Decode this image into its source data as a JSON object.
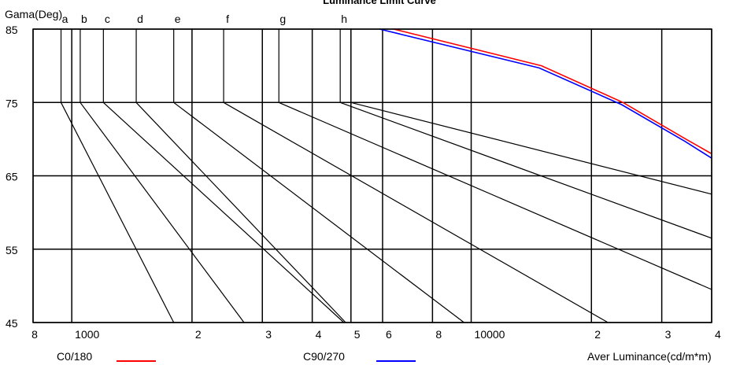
{
  "chart_data": {
    "type": "line",
    "title": "Luminance Limit Curve",
    "ylabel": "Gama(Deg)",
    "xlabel": "Aver Luminance(cd/m*m)",
    "x_scale": "log",
    "xlim": [
      800,
      40000
    ],
    "ylim": [
      45,
      85
    ],
    "y_ticks": [
      85,
      75,
      65,
      55,
      45
    ],
    "x_ticks": [
      {
        "value": 800,
        "label": "8"
      },
      {
        "value": 1000,
        "label": "1000"
      },
      {
        "value": 2000,
        "label": "2"
      },
      {
        "value": 3000,
        "label": "3"
      },
      {
        "value": 4000,
        "label": "4"
      },
      {
        "value": 5000,
        "label": "5"
      },
      {
        "value": 6000,
        "label": "6"
      },
      {
        "value": 8000,
        "label": "8"
      },
      {
        "value": 10000,
        "label": "10000"
      },
      {
        "value": 20000,
        "label": "2"
      },
      {
        "value": 30000,
        "label": "3"
      },
      {
        "value": 40000,
        "label": "4"
      }
    ],
    "grid": true,
    "limit_curves": [
      {
        "label": "a",
        "x_vertical": 940,
        "points": [
          [
            940,
            75
          ],
          [
            1800,
            45
          ]
        ]
      },
      {
        "label": "b",
        "x_vertical": 1050,
        "points": [
          [
            1050,
            75
          ],
          [
            2700,
            45
          ]
        ]
      },
      {
        "label": "c",
        "x_vertical": 1200,
        "points": [
          [
            1200,
            75
          ],
          [
            4800,
            45
          ]
        ]
      },
      {
        "label": "d",
        "x_vertical": 1450,
        "points": [
          [
            1450,
            75
          ],
          [
            4850,
            45
          ]
        ]
      },
      {
        "label": "e",
        "x_vertical": 1800,
        "points": [
          [
            1800,
            75
          ],
          [
            9600,
            45
          ]
        ]
      },
      {
        "label": "f",
        "x_vertical": 2400,
        "points": [
          [
            2400,
            75
          ],
          [
            22000,
            45
          ]
        ]
      },
      {
        "label": "g",
        "x_vertical": 3300,
        "points": [
          [
            3300,
            75
          ],
          [
            40000,
            49.5
          ]
        ]
      },
      {
        "label": "h",
        "x_vertical": 4700,
        "points": [
          [
            4700,
            75
          ],
          [
            40000,
            56.5
          ]
        ]
      },
      {
        "label": "",
        "x_vertical": 5000,
        "points": [
          [
            5000,
            75
          ],
          [
            40000,
            62.5
          ]
        ]
      }
    ],
    "series": [
      {
        "name": "C0/180",
        "color": "#ff0000",
        "points": [
          [
            6400,
            85
          ],
          [
            15000,
            80
          ],
          [
            24000,
            75
          ],
          [
            34500,
            70
          ],
          [
            40000,
            68
          ]
        ]
      },
      {
        "name": "C90/270",
        "color": "#0000ff",
        "points": [
          [
            5900,
            85
          ],
          [
            14800,
            79.7
          ],
          [
            23800,
            74.7
          ],
          [
            34300,
            69.7
          ],
          [
            40000,
            67.4
          ]
        ]
      }
    ],
    "legend": "bottom"
  }
}
